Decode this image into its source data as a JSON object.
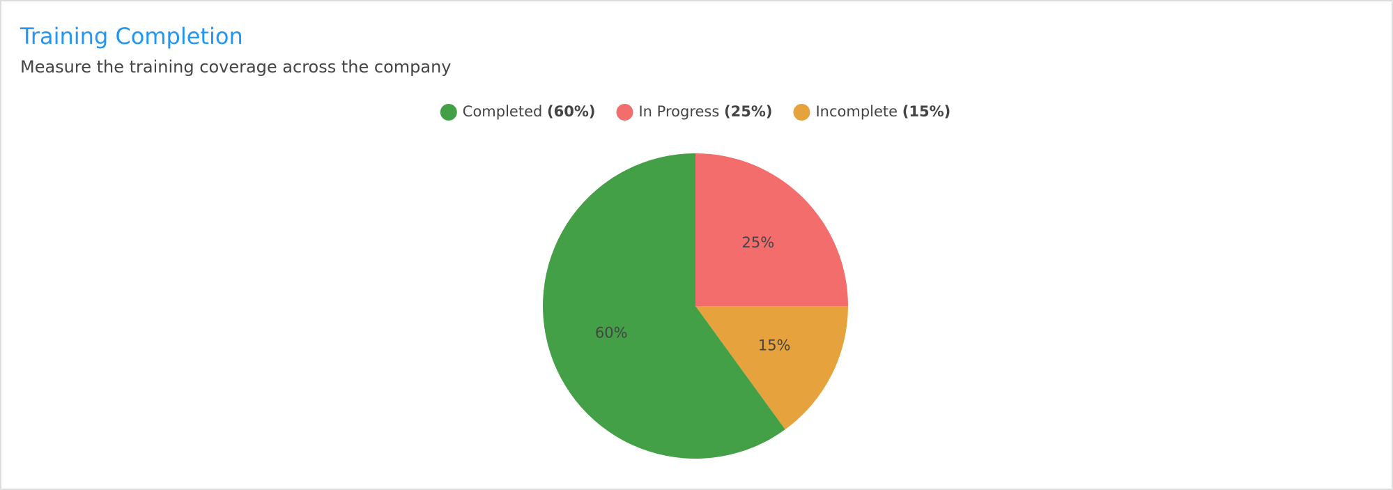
{
  "chart_data": {
    "type": "pie",
    "title": "Training Completion",
    "subtitle": "Measure the training coverage across the company",
    "categories": [
      "In Progress",
      "Incomplete",
      "Completed"
    ],
    "values": [
      25,
      15,
      60
    ],
    "value_labels": [
      "25%",
      "15%",
      "60%"
    ],
    "legend_value_labels": [
      "(25%)",
      "(15%)",
      "(60%)"
    ],
    "legend_order": [
      2,
      0,
      1
    ],
    "colors": [
      "#f46d6d",
      "#e6a23c",
      "#43a047"
    ],
    "legend": "top"
  }
}
